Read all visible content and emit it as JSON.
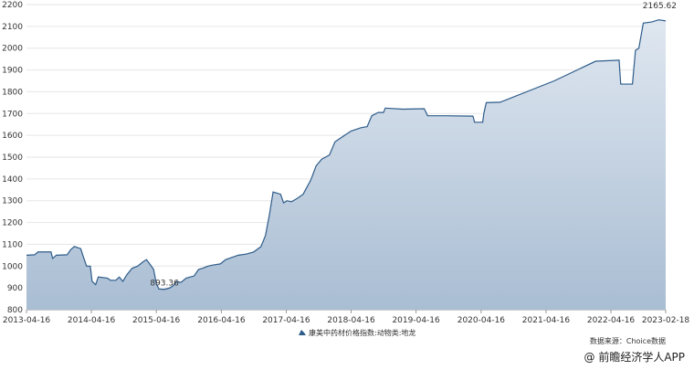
{
  "chart_data": {
    "type": "area",
    "yticks": [
      800,
      900,
      1000,
      1100,
      1200,
      1300,
      1400,
      1500,
      1600,
      1700,
      1800,
      1900,
      2000,
      2100,
      2200
    ],
    "ylim": [
      800,
      2200
    ],
    "xticks": [
      "2013-04-16",
      "2014-04-16",
      "2015-04-16",
      "2016-04-16",
      "2017-04-16",
      "2018-04-16",
      "2019-04-16",
      "2020-04-16",
      "2021-04-16",
      "2022-04-16",
      "2023-02-18"
    ],
    "xlim": [
      "2013-04-16",
      "2023-02-18"
    ],
    "grid": "horizontal",
    "series": [
      {
        "name": "康美中药材价格指数:动物类:地龙",
        "color": "#2e5c8a",
        "points": [
          [
            "2013-04-16",
            1050
          ],
          [
            "2013-06-01",
            1052
          ],
          [
            "2013-06-20",
            1065
          ],
          [
            "2013-09-01",
            1065
          ],
          [
            "2013-09-10",
            1035
          ],
          [
            "2013-10-01",
            1050
          ],
          [
            "2013-12-01",
            1052
          ],
          [
            "2013-12-20",
            1075
          ],
          [
            "2014-01-10",
            1090
          ],
          [
            "2014-02-15",
            1080
          ],
          [
            "2014-03-01",
            1045
          ],
          [
            "2014-03-20",
            1000
          ],
          [
            "2014-04-10",
            1000
          ],
          [
            "2014-04-20",
            930
          ],
          [
            "2014-05-10",
            915
          ],
          [
            "2014-05-25",
            950
          ],
          [
            "2014-07-15",
            945
          ],
          [
            "2014-08-01",
            935
          ],
          [
            "2014-09-01",
            935
          ],
          [
            "2014-09-20",
            950
          ],
          [
            "2014-10-10",
            930
          ],
          [
            "2014-11-01",
            960
          ],
          [
            "2014-12-01",
            990
          ],
          [
            "2015-01-01",
            1000
          ],
          [
            "2015-02-01",
            1020
          ],
          [
            "2015-02-20",
            1030
          ],
          [
            "2015-03-10",
            1010
          ],
          [
            "2015-04-01",
            985
          ],
          [
            "2015-04-16",
            920
          ],
          [
            "2015-05-01",
            895
          ],
          [
            "2015-06-01",
            893.36
          ],
          [
            "2015-07-01",
            900
          ],
          [
            "2015-07-20",
            910
          ],
          [
            "2015-08-10",
            930
          ],
          [
            "2015-09-01",
            925
          ],
          [
            "2015-10-01",
            945
          ],
          [
            "2015-11-15",
            955
          ],
          [
            "2015-12-10",
            985
          ],
          [
            "2016-01-01",
            990
          ],
          [
            "2016-02-01",
            1000
          ],
          [
            "2016-03-01",
            1005
          ],
          [
            "2016-04-10",
            1010
          ],
          [
            "2016-05-10",
            1030
          ],
          [
            "2016-06-15",
            1040
          ],
          [
            "2016-07-20",
            1050
          ],
          [
            "2016-09-01",
            1055
          ],
          [
            "2016-10-15",
            1065
          ],
          [
            "2016-11-25",
            1090
          ],
          [
            "2016-12-20",
            1140
          ],
          [
            "2017-01-10",
            1230
          ],
          [
            "2017-02-01",
            1340
          ],
          [
            "2017-03-15",
            1330
          ],
          [
            "2017-04-01",
            1290
          ],
          [
            "2017-04-20",
            1300
          ],
          [
            "2017-05-15",
            1295
          ],
          [
            "2017-06-15",
            1310
          ],
          [
            "2017-07-20",
            1330
          ],
          [
            "2017-09-01",
            1395
          ],
          [
            "2017-10-01",
            1460
          ],
          [
            "2017-11-01",
            1490
          ],
          [
            "2017-12-15",
            1510
          ],
          [
            "2018-01-15",
            1570
          ],
          [
            "2018-03-10",
            1600
          ],
          [
            "2018-04-16",
            1620
          ],
          [
            "2018-06-10",
            1635
          ],
          [
            "2018-07-15",
            1640
          ],
          [
            "2018-08-10",
            1690
          ],
          [
            "2018-09-15",
            1705
          ],
          [
            "2018-10-15",
            1705
          ],
          [
            "2018-10-25",
            1725
          ],
          [
            "2019-02-01",
            1720
          ],
          [
            "2019-06-01",
            1722
          ],
          [
            "2019-06-20",
            1690
          ],
          [
            "2019-10-01",
            1690
          ],
          [
            "2020-03-01",
            1688
          ],
          [
            "2020-03-10",
            1660
          ],
          [
            "2020-04-25",
            1660
          ],
          [
            "2020-05-01",
            1700
          ],
          [
            "2020-05-15",
            1750
          ],
          [
            "2020-08-01",
            1752
          ],
          [
            "2021-06-01",
            1850
          ],
          [
            "2022-01-20",
            1940
          ],
          [
            "2022-06-01",
            1945
          ],
          [
            "2022-06-10",
            1835
          ],
          [
            "2022-08-15",
            1835
          ],
          [
            "2022-09-01",
            1990
          ],
          [
            "2022-09-20",
            2000
          ],
          [
            "2022-10-15",
            2115
          ],
          [
            "2022-12-01",
            2120
          ],
          [
            "2023-01-10",
            2130
          ],
          [
            "2023-02-18",
            2125
          ]
        ]
      }
    ],
    "annotations": [
      {
        "text": "893.36",
        "x": "2015-06-01",
        "y": 893.36
      },
      {
        "text": "2165.62",
        "x": "2023-01-15",
        "y": 2165.62
      }
    ],
    "legend": {
      "position": "bottom-center",
      "label": "康美中药材价格指数:动物类:地龙"
    },
    "source": "数据来源：Choice数据",
    "color": "#2e5c8a"
  },
  "watermark": "@ 前瞻经济学人APP"
}
